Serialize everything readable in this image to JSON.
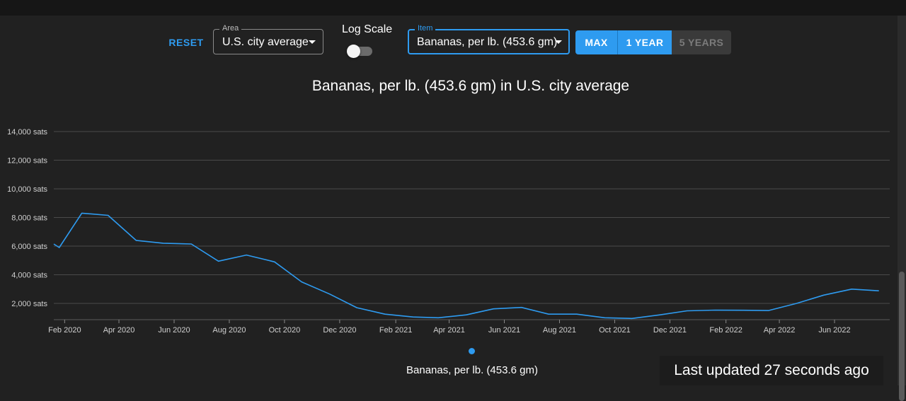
{
  "controls": {
    "reset_label": "RESET",
    "area": {
      "label": "Area",
      "value": "U.S. city average"
    },
    "log_scale": {
      "label": "Log Scale",
      "enabled": false
    },
    "item": {
      "label": "Item",
      "value": "Bananas, per lb. (453.6 gm)"
    },
    "ranges": [
      {
        "label": "MAX",
        "active": true
      },
      {
        "label": "1 YEAR",
        "active": true
      },
      {
        "label": "5 YEARS",
        "active": false
      }
    ]
  },
  "status": {
    "last_updated": "Last updated 27 seconds ago"
  },
  "colors": {
    "accent": "#2e9bf0",
    "background": "#212121",
    "grid": "#4a4a4a"
  },
  "chart_data": {
    "type": "line",
    "title": "Bananas, per lb. (453.6 gm) in U.S. city average",
    "xlabel": "",
    "ylabel": "",
    "y_unit": " sats",
    "ylim": [
      1000,
      14500
    ],
    "y_ticks": [
      2000,
      4000,
      6000,
      8000,
      10000,
      12000,
      14000
    ],
    "y_tick_labels": [
      "2,000 sats",
      "4,000 sats",
      "6,000 sats",
      "8,000 sats",
      "10,000 sats",
      "12,000 sats",
      "14,000 sats"
    ],
    "x_range": [
      "2020-01-20",
      "2022-08-01"
    ],
    "x_ticks": [
      "2020-02-01",
      "2020-04-01",
      "2020-06-01",
      "2020-08-01",
      "2020-10-01",
      "2020-12-01",
      "2021-02-01",
      "2021-04-01",
      "2021-06-01",
      "2021-08-01",
      "2021-10-01",
      "2021-12-01",
      "2022-02-01",
      "2022-04-01",
      "2022-06-01"
    ],
    "x_tick_labels": [
      "Feb 2020",
      "Apr 2020",
      "Jun 2020",
      "Aug 2020",
      "Oct 2020",
      "Dec 2020",
      "Feb 2021",
      "Apr 2021",
      "Jun 2021",
      "Aug 2021",
      "Oct 2021",
      "Dec 2021",
      "Feb 2022",
      "Apr 2022",
      "Jun 2022"
    ],
    "grid": true,
    "legend": "bottom",
    "series": [
      {
        "name": "Bananas, per lb. (453.6 gm)",
        "color": "#2e9bf0",
        "points": [
          [
            "2020-01-20",
            6150
          ],
          [
            "2020-01-26",
            5900
          ],
          [
            "2020-02-20",
            8300
          ],
          [
            "2020-03-20",
            8150
          ],
          [
            "2020-04-20",
            6400
          ],
          [
            "2020-05-20",
            6200
          ],
          [
            "2020-06-20",
            6150
          ],
          [
            "2020-07-20",
            4950
          ],
          [
            "2020-08-20",
            5380
          ],
          [
            "2020-09-20",
            4900
          ],
          [
            "2020-10-20",
            3500
          ],
          [
            "2020-11-20",
            2650
          ],
          [
            "2020-12-20",
            1700
          ],
          [
            "2021-01-20",
            1250
          ],
          [
            "2021-02-20",
            1050
          ],
          [
            "2021-03-20",
            1000
          ],
          [
            "2021-04-20",
            1200
          ],
          [
            "2021-05-20",
            1620
          ],
          [
            "2021-06-20",
            1720
          ],
          [
            "2021-07-20",
            1250
          ],
          [
            "2021-08-20",
            1250
          ],
          [
            "2021-09-20",
            1000
          ],
          [
            "2021-10-20",
            950
          ],
          [
            "2021-11-20",
            1200
          ],
          [
            "2021-12-20",
            1480
          ],
          [
            "2022-01-20",
            1530
          ],
          [
            "2022-02-20",
            1520
          ],
          [
            "2022-03-20",
            1500
          ],
          [
            "2022-04-20",
            2000
          ],
          [
            "2022-05-20",
            2580
          ],
          [
            "2022-06-20",
            3000
          ],
          [
            "2022-07-20",
            2880
          ]
        ]
      }
    ]
  }
}
